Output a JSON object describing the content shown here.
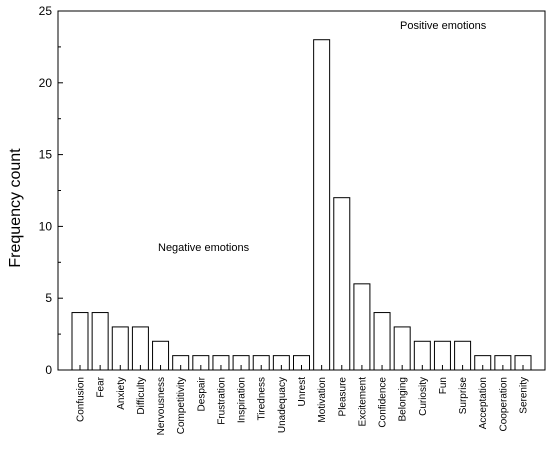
{
  "chart_data": {
    "type": "bar",
    "ylabel": "Frequency count",
    "xlabel": "",
    "ylim": [
      0,
      25
    ],
    "yticks": [
      0,
      5,
      10,
      15,
      20,
      25
    ],
    "grid": false,
    "categories": [
      "Confusion",
      "Fear",
      "Anxiety",
      "Difficulty",
      "Nervousness",
      "Competitivity",
      "Despair",
      "Frustration",
      "Inspiration",
      "Tiredness",
      "Unadequacy",
      "Unrest",
      "Motivation",
      "Pleasure",
      "Excitement",
      "Confidence",
      "Belonging",
      "Curiosity",
      "Fun",
      "Surprise",
      "Acceptation",
      "Cooperation",
      "Serenity"
    ],
    "values": [
      4,
      4,
      3,
      3,
      2,
      1,
      1,
      1,
      1,
      1,
      1,
      1,
      23,
      12,
      6,
      4,
      3,
      2,
      2,
      2,
      1,
      1,
      1
    ],
    "annotations": {
      "negative": "Negative emotions",
      "positive": "Positive emotions"
    }
  }
}
